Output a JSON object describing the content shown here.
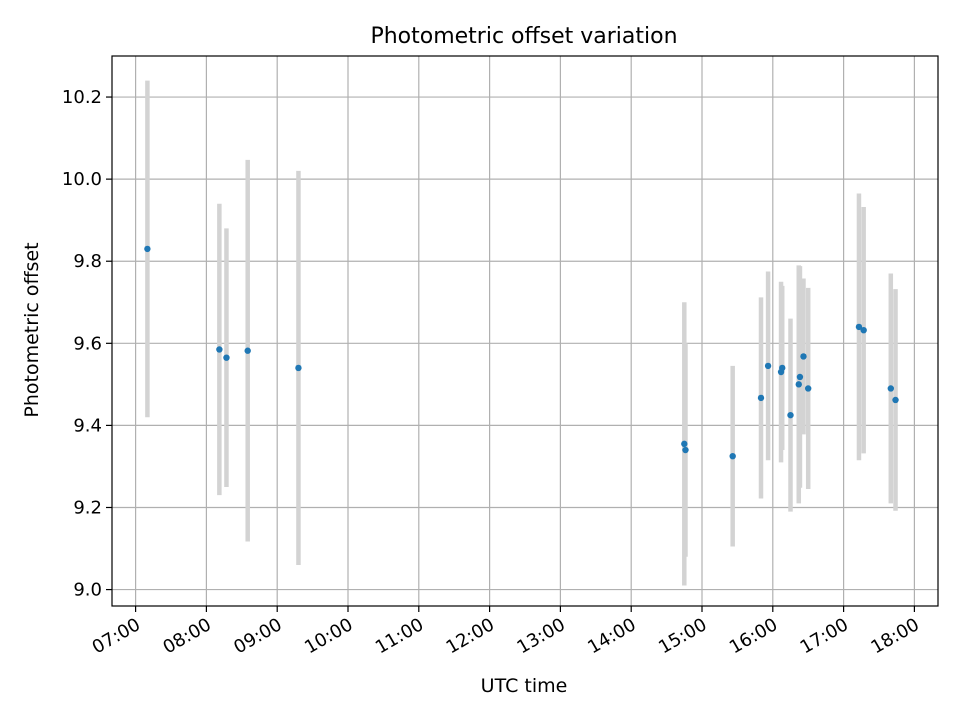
{
  "chart_data": {
    "type": "scatter",
    "title": "Photometric offset variation",
    "xlabel": "UTC time",
    "ylabel": "Photometric offset",
    "x_ticks": [
      "07:00",
      "08:00",
      "09:00",
      "10:00",
      "11:00",
      "12:00",
      "13:00",
      "14:00",
      "15:00",
      "16:00",
      "17:00",
      "18:00"
    ],
    "y_ticks": [
      "9.0",
      "9.2",
      "9.4",
      "9.6",
      "9.8",
      "10.0",
      "10.2"
    ],
    "xlim": [
      "06:40",
      "18:20"
    ],
    "ylim": [
      8.96,
      10.3
    ],
    "grid": true,
    "colors": {
      "point": "#1f77b4",
      "errorbar": "#d3d3d3",
      "grid": "#b0b0b0"
    },
    "points": [
      {
        "x": "07:10",
        "y": 9.83,
        "err": 0.41
      },
      {
        "x": "08:11",
        "y": 9.585,
        "err": 0.355
      },
      {
        "x": "08:17",
        "y": 9.565,
        "err": 0.315
      },
      {
        "x": "08:35",
        "y": 9.582,
        "err": 0.465
      },
      {
        "x": "09:18",
        "y": 9.54,
        "err": 0.48
      },
      {
        "x": "14:45",
        "y": 9.355,
        "err": 0.345
      },
      {
        "x": "14:46",
        "y": 9.34,
        "err": 0.26
      },
      {
        "x": "15:26",
        "y": 9.325,
        "err": 0.22
      },
      {
        "x": "15:50",
        "y": 9.467,
        "err": 0.245
      },
      {
        "x": "15:56",
        "y": 9.545,
        "err": 0.23
      },
      {
        "x": "16:07",
        "y": 9.53,
        "err": 0.22
      },
      {
        "x": "16:08",
        "y": 9.54,
        "err": 0.2
      },
      {
        "x": "16:15",
        "y": 9.425,
        "err": 0.235
      },
      {
        "x": "16:22",
        "y": 9.5,
        "err": 0.29
      },
      {
        "x": "16:23",
        "y": 9.518,
        "err": 0.27
      },
      {
        "x": "16:26",
        "y": 9.568,
        "err": 0.19
      },
      {
        "x": "16:30",
        "y": 9.49,
        "err": 0.245
      },
      {
        "x": "17:13",
        "y": 9.64,
        "err": 0.325
      },
      {
        "x": "17:17",
        "y": 9.632,
        "err": 0.3
      },
      {
        "x": "17:40",
        "y": 9.49,
        "err": 0.28
      },
      {
        "x": "17:44",
        "y": 9.462,
        "err": 0.27
      }
    ]
  }
}
